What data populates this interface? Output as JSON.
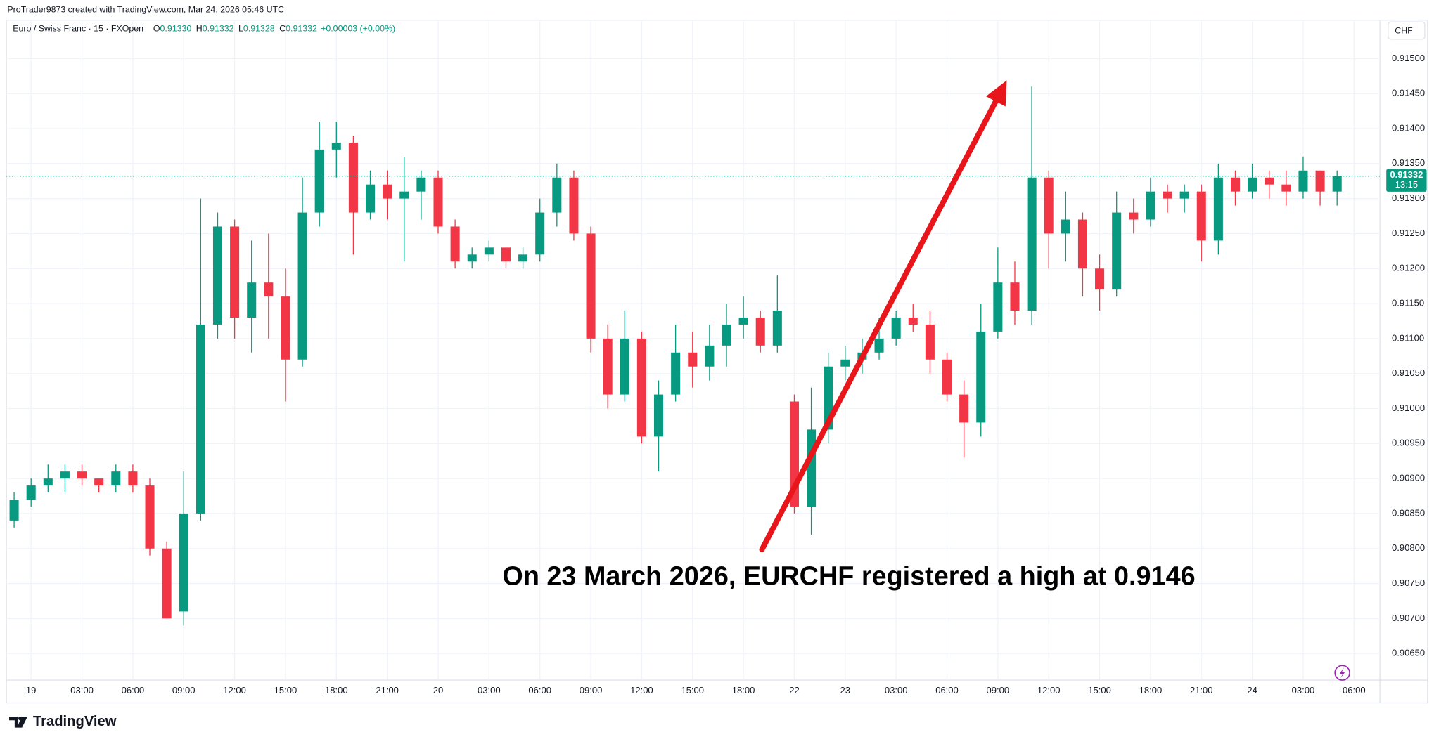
{
  "header": {
    "credit": "ProTrader9873 created with TradingView.com, Mar 24, 2026 05:46 UTC",
    "brand": "TradingView"
  },
  "chart_data": {
    "type": "candlestick",
    "legend": {
      "symbol": "Euro / Swiss Franc · 15 · FXOpen",
      "items": [
        {
          "label": "O",
          "value": "0.91330"
        },
        {
          "label": "H",
          "value": "0.91332"
        },
        {
          "label": "L",
          "value": "0.91328"
        },
        {
          "label": "C",
          "value": "0.91332"
        }
      ],
      "change": "+0.00003 (+0.00%)"
    },
    "currency": "CHF",
    "countdown": "13:15",
    "annotation": "On 23 March 2026, EURCHF registered a high at 0.9146",
    "up_color": "#089981",
    "down_color": "#f23645",
    "arrow_color": "#e8161a",
    "grid": true,
    "x": [
      -1,
      0,
      1,
      2,
      3,
      4,
      5,
      6,
      7,
      8,
      9,
      10,
      11,
      12,
      13,
      14,
      15,
      16,
      17,
      18,
      19,
      20,
      21,
      22,
      23,
      24,
      25,
      26,
      27,
      28,
      29,
      30,
      31,
      32,
      33,
      34,
      35,
      36,
      37,
      38,
      39,
      40,
      41,
      42,
      43,
      44,
      45,
      46,
      47,
      48,
      49,
      50,
      51,
      52,
      53,
      54,
      55,
      56,
      57,
      58,
      59,
      60,
      61,
      62,
      63,
      64,
      65,
      66,
      67,
      68,
      69,
      70,
      71,
      72,
      73,
      74,
      75,
      76,
      77
    ],
    "open": [
      0.9084,
      0.9087,
      0.9089,
      0.909,
      0.9091,
      0.909,
      0.9089,
      0.9091,
      0.9089,
      0.908,
      0.9071,
      0.9085,
      0.9112,
      0.9126,
      0.9113,
      0.9118,
      0.9116,
      0.9107,
      0.9128,
      0.9137,
      0.9138,
      0.9128,
      0.9132,
      0.913,
      0.9131,
      0.9133,
      0.9126,
      0.9121,
      0.9122,
      0.9123,
      0.9121,
      0.9122,
      0.9128,
      0.9133,
      0.9125,
      0.911,
      0.9102,
      0.911,
      0.9096,
      0.9102,
      0.9108,
      0.9106,
      0.9109,
      0.9112,
      0.9113,
      0.9109,
      0.9101,
      0.9086,
      0.9097,
      0.9106,
      0.9107,
      0.9108,
      0.911,
      0.9113,
      0.9112,
      0.9107,
      0.9102,
      0.9098,
      0.9111,
      0.9118,
      0.9114,
      0.9133,
      0.9125,
      0.9127,
      0.912,
      0.9117,
      0.9128,
      0.9127,
      0.9131,
      0.913,
      0.9131,
      0.9124,
      0.9133,
      0.9131,
      0.9133,
      0.9132,
      0.9131,
      0.9134,
      0.9131
    ],
    "high": [
      0.9088,
      0.909,
      0.9092,
      0.9092,
      0.9092,
      0.909,
      0.9092,
      0.9092,
      0.909,
      0.9081,
      0.9091,
      0.913,
      0.9128,
      0.9127,
      0.9124,
      0.9125,
      0.912,
      0.9133,
      0.9141,
      0.9141,
      0.9139,
      0.9134,
      0.9134,
      0.9136,
      0.9134,
      0.9134,
      0.9127,
      0.9123,
      0.9124,
      0.9123,
      0.9123,
      0.913,
      0.9135,
      0.9134,
      0.9126,
      0.9112,
      0.9114,
      0.9111,
      0.9104,
      0.9112,
      0.9111,
      0.9112,
      0.9115,
      0.9116,
      0.9114,
      0.9119,
      0.9102,
      0.9103,
      0.9108,
      0.9109,
      0.911,
      0.9113,
      0.9114,
      0.9115,
      0.9114,
      0.9108,
      0.9104,
      0.9115,
      0.9123,
      0.9121,
      0.9146,
      0.9134,
      0.9131,
      0.9128,
      0.9122,
      0.9131,
      0.913,
      0.9133,
      0.9132,
      0.9132,
      0.9132,
      0.9135,
      0.9134,
      0.9135,
      0.9134,
      0.9134,
      0.9136,
      0.9134,
      0.9134
    ],
    "low": [
      0.9083,
      0.9086,
      0.9088,
      0.9088,
      0.9089,
      0.9088,
      0.9088,
      0.9088,
      0.9079,
      0.907,
      0.9069,
      0.9084,
      0.911,
      0.911,
      0.9108,
      0.911,
      0.9101,
      0.9106,
      0.9126,
      0.9133,
      0.9122,
      0.9127,
      0.9127,
      0.9121,
      0.9127,
      0.9125,
      0.912,
      0.912,
      0.9121,
      0.912,
      0.912,
      0.9121,
      0.9126,
      0.9124,
      0.9108,
      0.91,
      0.9101,
      0.9095,
      0.9091,
      0.9101,
      0.9103,
      0.9104,
      0.9106,
      0.911,
      0.9108,
      0.9108,
      0.9085,
      0.9082,
      0.9095,
      0.9104,
      0.9105,
      0.9107,
      0.9109,
      0.9111,
      0.9105,
      0.9101,
      0.9093,
      0.9096,
      0.911,
      0.9112,
      0.9112,
      0.912,
      0.9121,
      0.9116,
      0.9114,
      0.9116,
      0.9125,
      0.9126,
      0.9128,
      0.9128,
      0.9121,
      0.9122,
      0.9129,
      0.913,
      0.913,
      0.9129,
      0.913,
      0.9129,
      0.9129
    ],
    "close": [
      0.9087,
      0.9089,
      0.909,
      0.9091,
      0.909,
      0.9089,
      0.9091,
      0.9089,
      0.908,
      0.907,
      0.9085,
      0.9112,
      0.9126,
      0.9113,
      0.9118,
      0.9116,
      0.9107,
      0.9128,
      0.9137,
      0.9138,
      0.9128,
      0.9132,
      0.913,
      0.9131,
      0.9133,
      0.9126,
      0.9121,
      0.9122,
      0.9123,
      0.9121,
      0.9122,
      0.9128,
      0.9133,
      0.9125,
      0.911,
      0.9102,
      0.911,
      0.9096,
      0.9102,
      0.9108,
      0.9106,
      0.9109,
      0.9112,
      0.9113,
      0.9109,
      0.9114,
      0.9086,
      0.9097,
      0.9106,
      0.9107,
      0.9108,
      0.911,
      0.9113,
      0.9112,
      0.9107,
      0.9102,
      0.9098,
      0.9111,
      0.9118,
      0.9114,
      0.9133,
      0.9125,
      0.9127,
      0.912,
      0.9117,
      0.9128,
      0.9127,
      0.9131,
      0.913,
      0.9131,
      0.9124,
      0.9133,
      0.9131,
      0.9133,
      0.9132,
      0.9131,
      0.9134,
      0.9131,
      0.91332
    ],
    "xlim": [
      -1.4,
      79.2
    ],
    "xticks": [
      {
        "value": 0,
        "label": "19"
      },
      {
        "value": 3,
        "label": "03:00"
      },
      {
        "value": 6,
        "label": "06:00"
      },
      {
        "value": 9,
        "label": "09:00"
      },
      {
        "value": 12,
        "label": "12:00"
      },
      {
        "value": 15,
        "label": "15:00"
      },
      {
        "value": 18,
        "label": "18:00"
      },
      {
        "value": 21,
        "label": "21:00"
      },
      {
        "value": 24,
        "label": "20"
      },
      {
        "value": 27,
        "label": "03:00"
      },
      {
        "value": 30,
        "label": "06:00"
      },
      {
        "value": 33,
        "label": "09:00"
      },
      {
        "value": 36,
        "label": "12:00"
      },
      {
        "value": 39,
        "label": "15:00"
      },
      {
        "value": 42,
        "label": "18:00"
      },
      {
        "value": 45,
        "label": "22"
      },
      {
        "value": 48,
        "label": "23"
      },
      {
        "value": 51,
        "label": "03:00"
      },
      {
        "value": 54,
        "label": "06:00"
      },
      {
        "value": 57,
        "label": "09:00"
      },
      {
        "value": 60,
        "label": "12:00"
      },
      {
        "value": 63,
        "label": "15:00"
      },
      {
        "value": 66,
        "label": "18:00"
      },
      {
        "value": 69,
        "label": "21:00"
      },
      {
        "value": 72,
        "label": "24"
      },
      {
        "value": 75,
        "label": "03:00"
      },
      {
        "value": 78,
        "label": "06:00"
      }
    ],
    "ylim": [
      0.90612,
      0.91555
    ],
    "yticks": [
      {
        "value": 0.9065,
        "label": "0.90650"
      },
      {
        "value": 0.907,
        "label": "0.90700"
      },
      {
        "value": 0.9075,
        "label": "0.90750"
      },
      {
        "value": 0.908,
        "label": "0.90800"
      },
      {
        "value": 0.9085,
        "label": "0.90850"
      },
      {
        "value": 0.909,
        "label": "0.90900"
      },
      {
        "value": 0.9095,
        "label": "0.90950"
      },
      {
        "value": 0.91,
        "label": "0.91000"
      },
      {
        "value": 0.9105,
        "label": "0.91050"
      },
      {
        "value": 0.911,
        "label": "0.91100"
      },
      {
        "value": 0.9115,
        "label": "0.91150"
      },
      {
        "value": 0.912,
        "label": "0.91200"
      },
      {
        "value": 0.9125,
        "label": "0.91250"
      },
      {
        "value": 0.913,
        "label": "0.91300"
      },
      {
        "value": 0.9135,
        "label": "0.91350"
      },
      {
        "value": 0.914,
        "label": "0.91400"
      },
      {
        "value": 0.9145,
        "label": "0.91450"
      },
      {
        "value": 0.915,
        "label": "0.91500"
      }
    ]
  }
}
